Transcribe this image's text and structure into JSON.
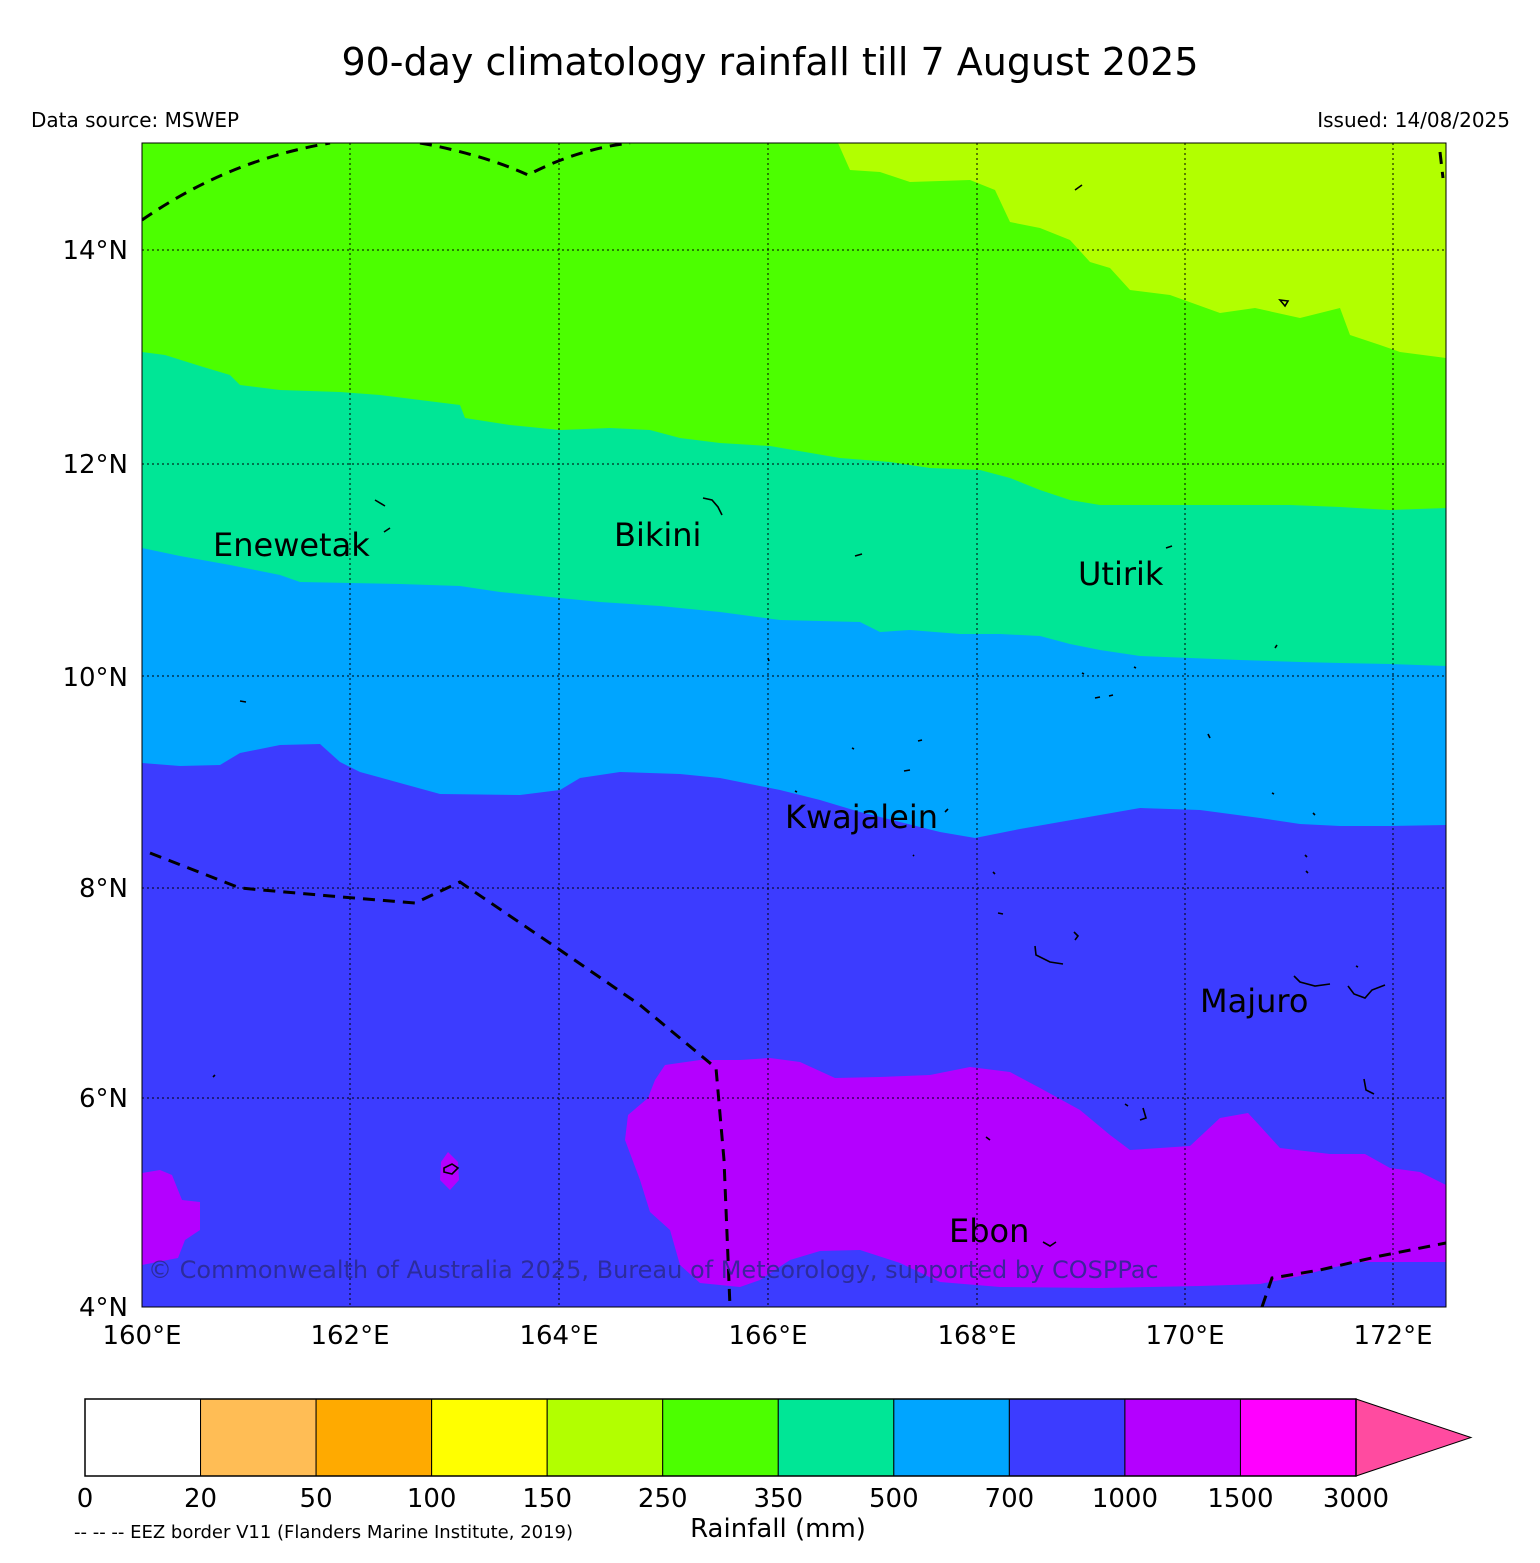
{
  "title": "90-day climatology rainfall till 7 August 2025",
  "data_source": "Data source: MSWEP",
  "issued": "Issued: 14/08/2025",
  "copyright": "© Commonwealth of Australia 2025, Bureau of Meteorology, supported by COSPPac",
  "eez_note": "-- -- -- EEZ border V11 (Flanders Marine Institute, 2019)",
  "lat_labels": [
    "14°N",
    "12°N",
    "10°N",
    "8°N",
    "6°N",
    "4°N"
  ],
  "lon_labels": [
    "160°E",
    "162°E",
    "164°E",
    "166°E",
    "168°E",
    "170°E",
    "172°E"
  ],
  "places": [
    "Enewetak",
    "Bikini",
    "Utirik",
    "Kwajalein",
    "Majuro",
    "Ebon"
  ],
  "colorbar": {
    "title": "Rainfall (mm)",
    "ticks": [
      "0",
      "20",
      "50",
      "100",
      "150",
      "250",
      "350",
      "500",
      "700",
      "1000",
      "1500",
      "3000"
    ],
    "colors": [
      "#ffffff",
      "#ffbd55",
      "#ffaa00",
      "#ffff00",
      "#b2ff00",
      "#4cff00",
      "#00e696",
      "#00a5ff",
      "#3c3cff",
      "#b400ff",
      "#ff00ff",
      "#ff4ba0"
    ]
  },
  "field_colors": {
    "c250": "#b2ff00",
    "c350": "#4cff00",
    "c500": "#00e696",
    "c700": "#00a5ff",
    "c1000": "#3c3cff",
    "c1500": "#b400ff"
  }
}
